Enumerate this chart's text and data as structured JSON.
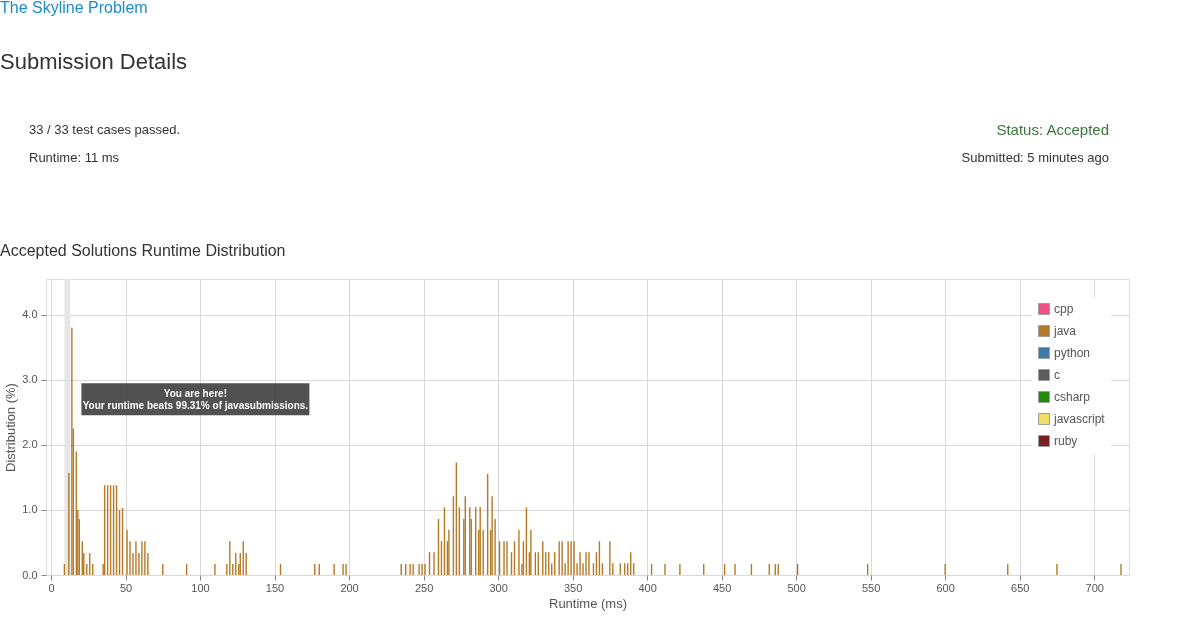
{
  "chart_data": {
    "type": "bar",
    "title": "Accepted Solutions Runtime Distribution",
    "xlabel": "Runtime (ms)",
    "ylabel": "Distribution (%)",
    "annotations": [
      "The Skyline Problem",
      "Submission Details",
      "33 / 33 test cases passed.",
      "Runtime: 11 ms",
      "Status: Accepted",
      "Submitted: 5 minutes ago",
      {
        "text": "You are here!\nYour runtime beats 99.31% of javasubmissions.",
        "x": 11,
        "y": 2.7
      }
    ],
    "bands": [
      {
        "axis": "x",
        "from": 9,
        "to": 13,
        "color": "#e6e6e6"
      }
    ],
    "series": [
      {
        "name": "cpp",
        "color": "#f1457e"
      },
      {
        "name": "java",
        "color": "#b07219",
        "x": [
          9,
          12,
          14,
          15,
          17,
          18,
          19,
          21,
          22,
          24,
          26,
          28,
          35,
          36,
          38,
          40,
          42,
          44,
          46,
          48,
          51,
          53,
          55,
          57,
          59,
          61,
          63,
          65,
          75,
          91,
          110,
          118,
          120,
          122,
          124,
          126,
          127,
          129,
          131,
          154,
          177,
          180,
          190,
          196,
          198,
          235,
          238,
          241,
          243,
          247,
          249,
          251,
          254,
          257,
          260,
          262,
          264,
          266,
          267,
          270,
          272,
          274,
          277,
          278,
          281,
          282,
          285,
          287,
          288,
          290,
          293,
          295,
          296,
          298,
          301,
          304,
          306,
          309,
          311,
          314,
          316,
          317,
          319,
          321,
          322,
          325,
          327,
          330,
          332,
          334,
          336,
          338,
          341,
          343,
          345,
          347,
          349,
          351,
          353,
          355,
          357,
          359,
          361,
          364,
          366,
          368,
          370,
          375,
          377,
          382,
          385,
          387,
          389,
          391,
          403,
          412,
          422,
          438,
          452,
          459,
          470,
          482,
          486,
          488,
          501,
          548,
          600,
          642,
          675,
          718
        ],
        "values": [
          0.17,
          1.57,
          3.8,
          2.25,
          1.9,
          1.0,
          0.86,
          0.52,
          0.34,
          0.17,
          0.34,
          0.17,
          0.17,
          1.38,
          1.38,
          1.38,
          1.38,
          1.38,
          1.0,
          1.03,
          0.69,
          0.52,
          0.34,
          0.52,
          0.34,
          0.52,
          0.52,
          0.34,
          0.17,
          0.17,
          0.17,
          0.17,
          0.52,
          0.17,
          0.34,
          0.17,
          0.34,
          0.52,
          0.34,
          0.17,
          0.17,
          0.17,
          0.17,
          0.17,
          0.17,
          0.17,
          0.17,
          0.17,
          0.17,
          0.17,
          0.17,
          0.17,
          0.35,
          0.35,
          0.86,
          0.52,
          1.04,
          0.52,
          0.69,
          1.21,
          1.73,
          1.04,
          0.86,
          1.21,
          1.04,
          0.86,
          1.04,
          0.69,
          1.04,
          0.69,
          1.55,
          0.69,
          1.21,
          0.86,
          0.52,
          0.52,
          0.52,
          0.35,
          0.52,
          0.69,
          0.17,
          0.52,
          1.04,
          0.35,
          0.69,
          0.35,
          0.35,
          0.52,
          0.35,
          0.35,
          0.18,
          0.35,
          0.52,
          0.52,
          0.18,
          0.52,
          0.52,
          0.52,
          0.18,
          0.35,
          0.18,
          0.35,
          0.35,
          0.18,
          0.35,
          0.52,
          0.18,
          0.52,
          0.18,
          0.18,
          0.18,
          0.18,
          0.35,
          0.18,
          0.17,
          0.17,
          0.17,
          0.17,
          0.17,
          0.17,
          0.17,
          0.17,
          0.17,
          0.17,
          0.17,
          0.17,
          0.17,
          0.17,
          0.17,
          0.17
        ]
      },
      {
        "name": "python",
        "color": "#3572a5"
      },
      {
        "name": "c",
        "color": "#555555"
      },
      {
        "name": "csharp",
        "color": "#178600"
      },
      {
        "name": "javascript",
        "color": "#f1e05a"
      },
      {
        "name": "ruby",
        "color": "#701516"
      }
    ],
    "xlim": [
      0,
      720
    ],
    "xticks": [
      0,
      50,
      100,
      150,
      200,
      250,
      300,
      350,
      400,
      450,
      500,
      550,
      600,
      650,
      700
    ],
    "ylim": [
      0,
      4.55
    ],
    "yticks": [
      {
        "value": 0,
        "label": "0.0"
      },
      {
        "value": 1,
        "label": "1.0"
      },
      {
        "value": 2,
        "label": "2.0"
      },
      {
        "value": 3,
        "label": "3.0"
      },
      {
        "value": 4,
        "label": "4.0"
      }
    ],
    "grid": true,
    "legend": "top right"
  }
}
